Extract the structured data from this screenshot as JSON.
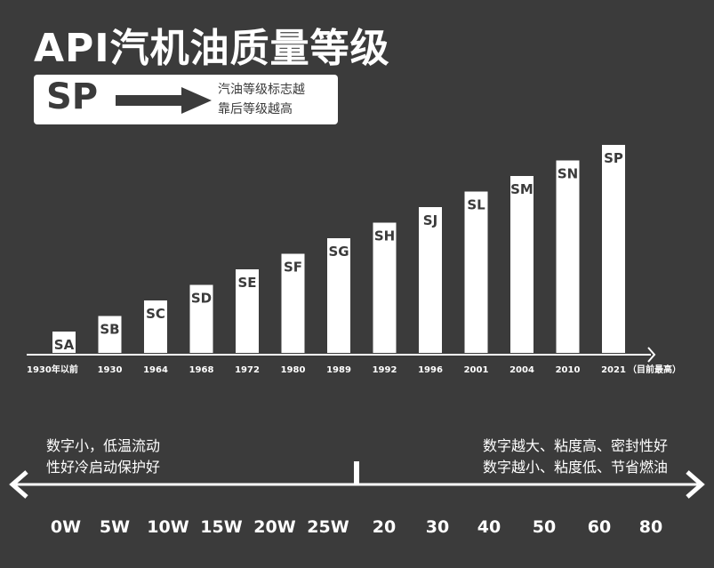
{
  "title": "API汽机油质量等级",
  "badge": {
    "label": "SP",
    "note_line1": "汽油等级标志越",
    "note_line2": "靠后等级越高"
  },
  "chart_data": {
    "type": "bar",
    "title": "API汽机油质量等级",
    "categories": [
      "1930年以前",
      "1930",
      "1964",
      "1968",
      "1972",
      "1980",
      "1989",
      "1992",
      "1996",
      "2001",
      "2004",
      "2010",
      "2021"
    ],
    "bar_labels": [
      "SA",
      "SB",
      "SC",
      "SD",
      "SE",
      "SF",
      "SG",
      "SH",
      "SJ",
      "SL",
      "SM",
      "SN",
      "SP"
    ],
    "values": [
      1,
      2,
      3,
      4,
      5,
      6,
      7,
      8,
      9,
      10,
      11,
      12,
      13
    ],
    "axis_end_label": "（目前最高）",
    "xlabel": "",
    "ylabel": "",
    "grid": false,
    "bar_color": "#ffffff",
    "background": "#3b3b3b"
  },
  "viscosity": {
    "left_note": [
      "数字小，低温流动",
      "性好冷启动保护好"
    ],
    "right_note": [
      "数字越大、粘度高、密封性好",
      "数字越小、粘度低、节省燃油"
    ],
    "winter_grades": [
      "0W",
      "5W",
      "10W",
      "15W",
      "20W",
      "25W"
    ],
    "summer_grades": [
      "20",
      "30",
      "40",
      "50",
      "60",
      "80"
    ]
  }
}
